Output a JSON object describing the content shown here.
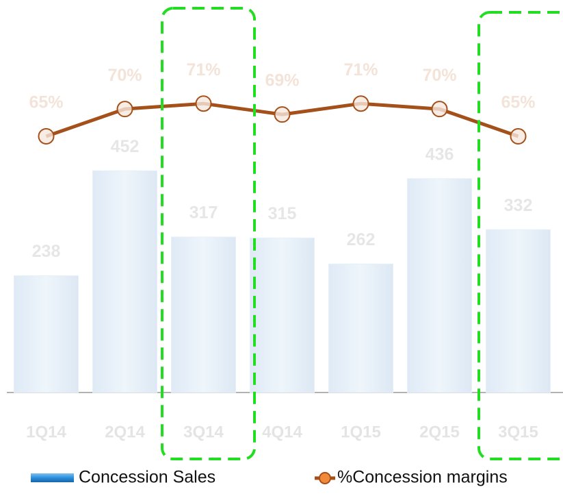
{
  "chart_data": {
    "type": "bar",
    "categories": [
      "1Q14",
      "2Q14",
      "3Q14",
      "4Q14",
      "1Q15",
      "2Q15",
      "3Q15"
    ],
    "series": [
      {
        "name": "Concession Sales",
        "type": "bar",
        "color": "#e6f0f9",
        "values": [
          238,
          452,
          317,
          315,
          262,
          436,
          332
        ]
      },
      {
        "name": "%Concession margins",
        "type": "line",
        "axis": "y2",
        "color": "#a4501a",
        "values": [
          65,
          70,
          71,
          69,
          71,
          70,
          65
        ],
        "value_labels": [
          "65%",
          "70%",
          "71%",
          "69%",
          "71%",
          "70%",
          "65%"
        ]
      }
    ],
    "ylim": [
      0,
      800
    ],
    "y2lim": [
      18,
      90
    ]
  }
}
